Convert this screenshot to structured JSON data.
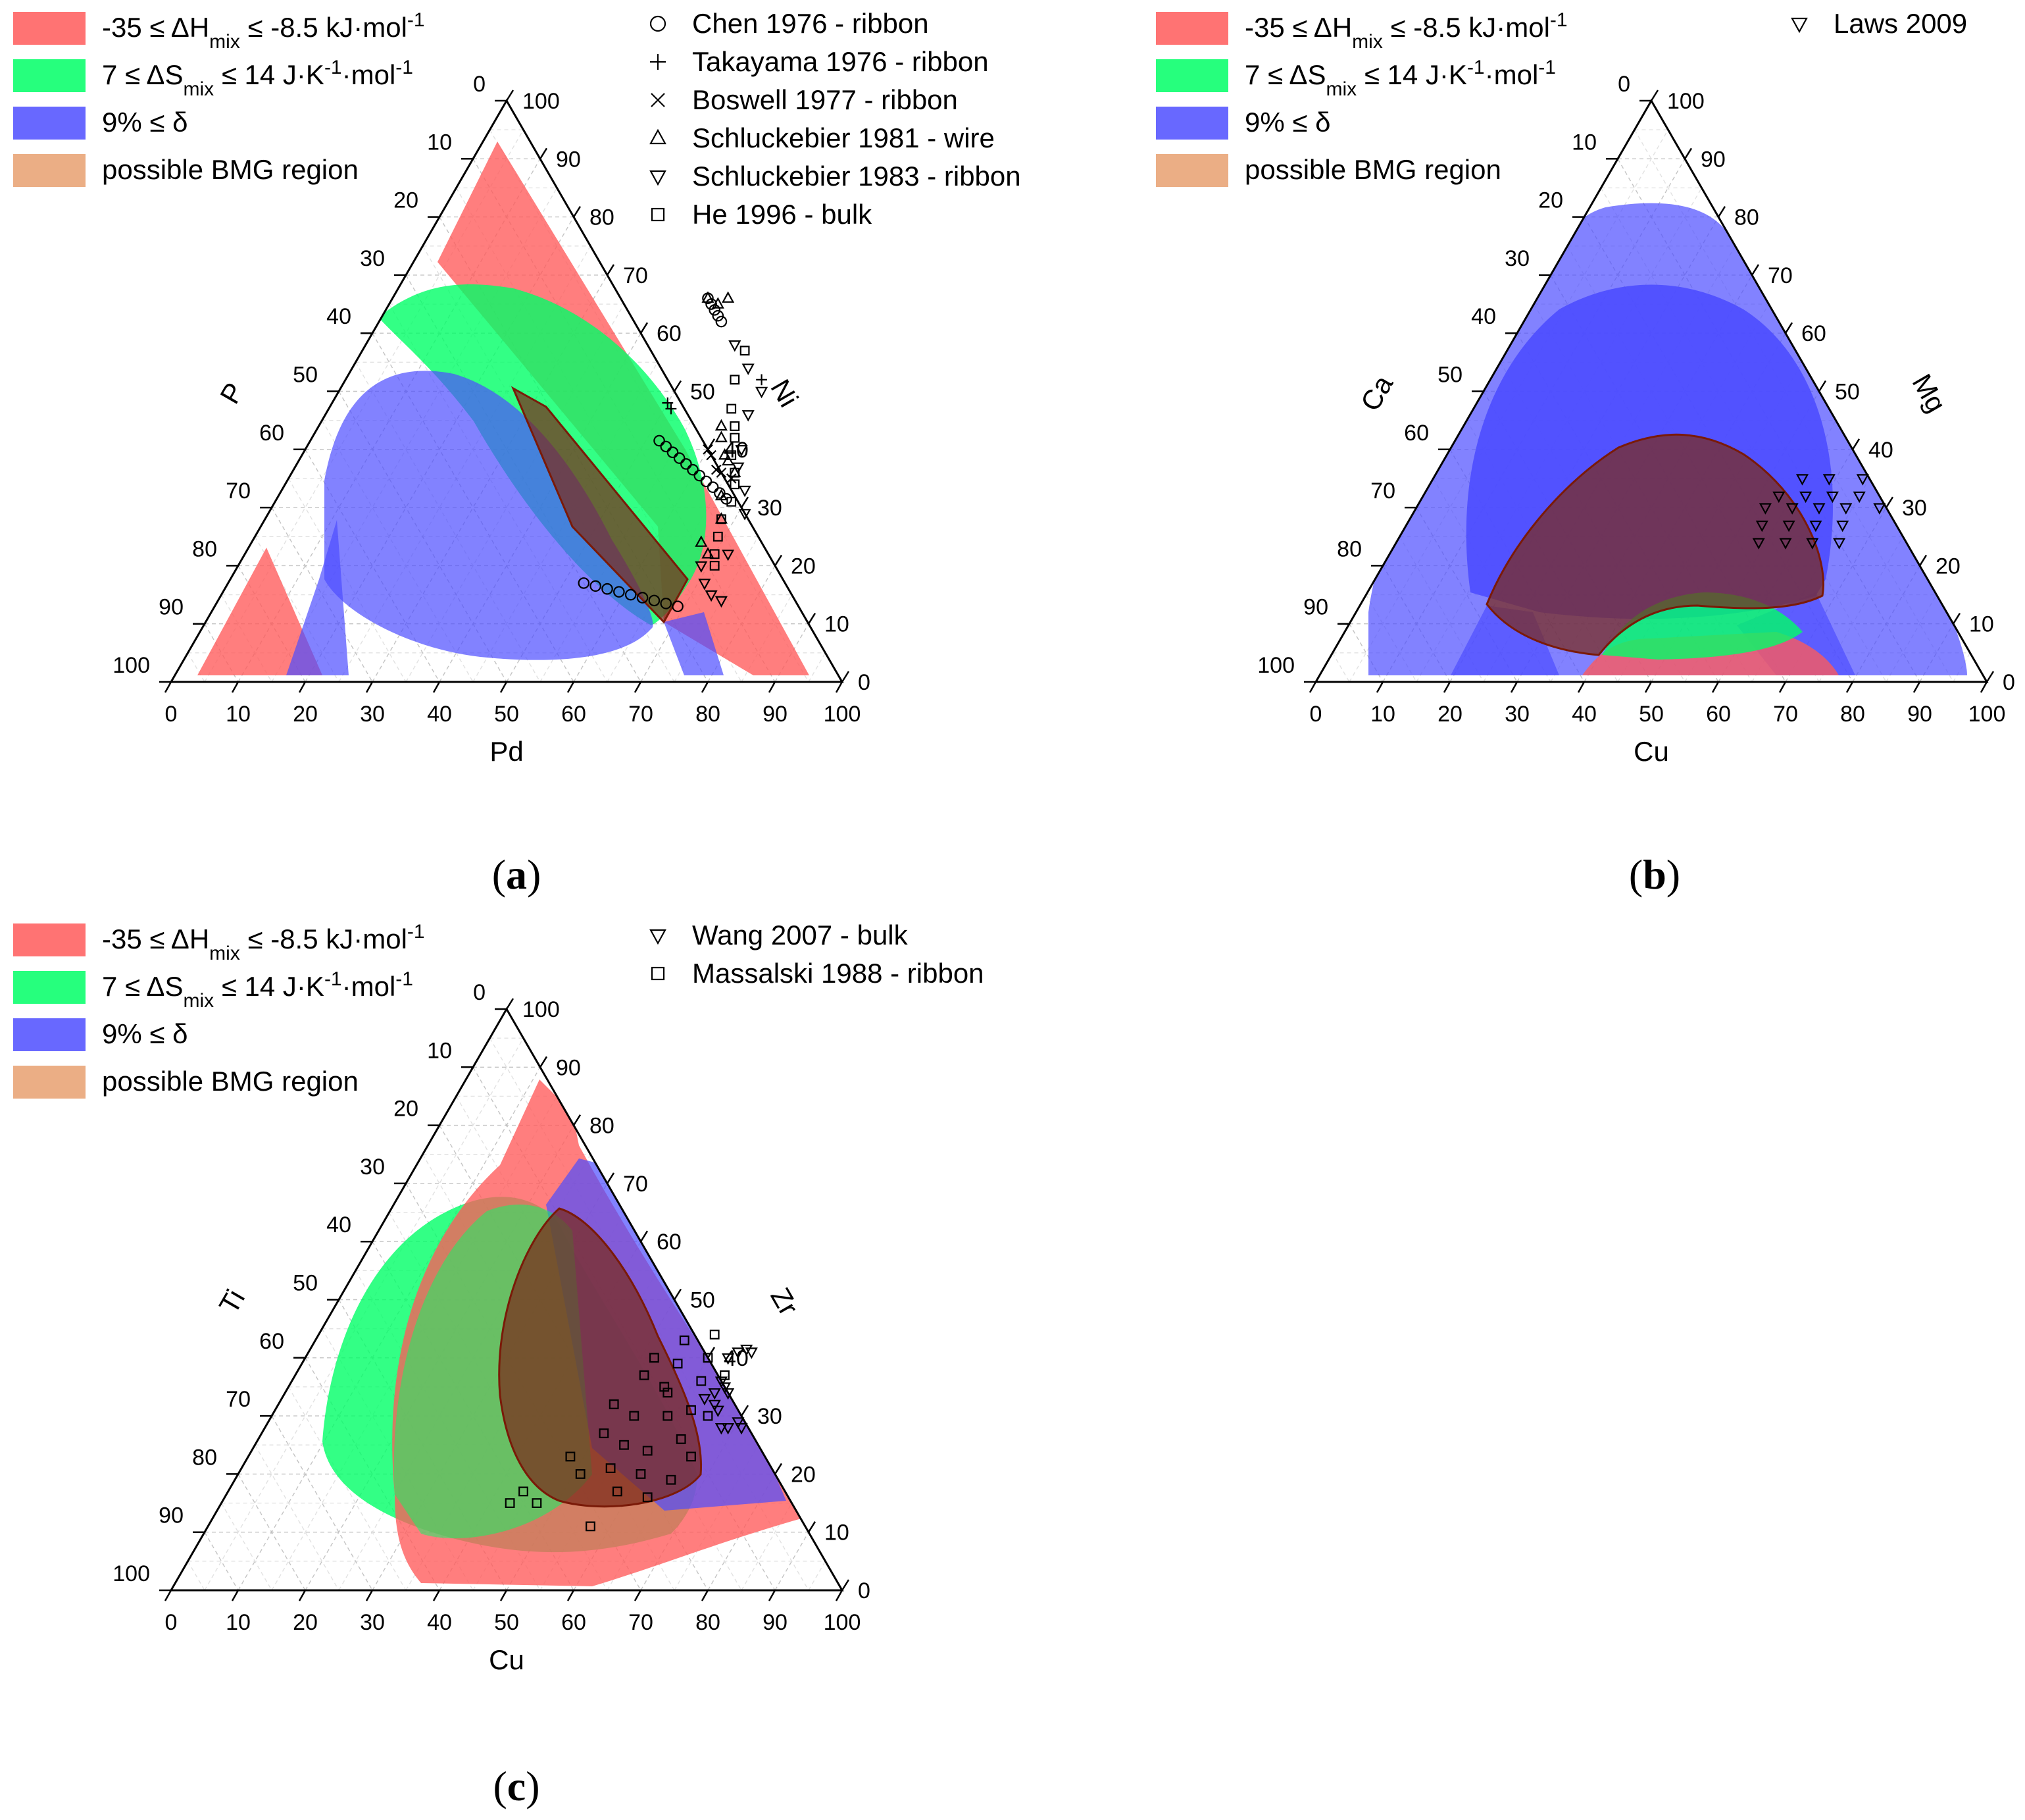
{
  "figure": {
    "colors": {
      "enthalpy": "#ff5a5a",
      "entropy": "#00ff66",
      "delta": "#4d4dff",
      "bmg": "#e8a070",
      "bmg_overlay": "#7a2a1a",
      "bmg_border": "#7a1a08",
      "axis": "#000000",
      "grid": "#c8c8c8"
    }
  },
  "chart_data": [
    {
      "type": "ternary",
      "panel": "(a)",
      "caption_letter": "a",
      "axes": {
        "bottom": {
          "label": "Pd",
          "ticks": [
            "0",
            "10",
            "20",
            "30",
            "40",
            "50",
            "60",
            "70",
            "80",
            "90",
            "100"
          ]
        },
        "left": {
          "label": "P",
          "ticks": [
            "0",
            "10",
            "20",
            "30",
            "40",
            "50",
            "60",
            "70",
            "80",
            "90",
            "100"
          ]
        },
        "right": {
          "label": "Ni",
          "ticks": [
            "0",
            "10",
            "20",
            "30",
            "40",
            "50",
            "60",
            "70",
            "80",
            "90",
            "100"
          ]
        }
      },
      "legend": [
        {
          "key": "enthalpy",
          "pre": "-35 ≤ ΔH",
          "sub": "mix",
          "post": " ≤ -8.5 kJ·mol",
          "sup": "-1",
          "post2": ""
        },
        {
          "key": "entropy",
          "pre": "7 ≤ ΔS",
          "sub": "mix",
          "post": " ≤ 14 J·K",
          "sup": "-1",
          "post2": "·mol",
          "sup2": "-1"
        },
        {
          "key": "delta",
          "pre": "9% ≤   δ"
        },
        {
          "key": "bmg",
          "pre": "possible BMG region"
        }
      ],
      "series": [
        {
          "name": "Chen 1976 - ribbon",
          "marker": "circle",
          "points": [
            [
              52,
              41.5
            ],
            [
              53.5,
              40.5
            ],
            [
              55,
              39.5
            ],
            [
              56.5,
              38.5
            ],
            [
              58,
              37.5
            ],
            [
              59.5,
              36.5
            ],
            [
              61,
              35.5
            ],
            [
              62.5,
              34.5
            ],
            [
              64,
              33.5
            ],
            [
              65.5,
              32.5
            ],
            [
              67,
              31.5
            ],
            [
              53,
              17
            ],
            [
              55,
              16.5
            ],
            [
              57,
              16
            ],
            [
              59,
              15.5
            ],
            [
              61,
              15
            ],
            [
              63,
              14.5
            ],
            [
              65,
              14
            ],
            [
              67,
              13.5
            ],
            [
              69,
              13
            ],
            [
              47,
              66
            ],
            [
              48,
              65
            ],
            [
              49,
              64
            ],
            [
              50,
              63
            ],
            [
              51,
              62
            ]
          ]
        },
        {
          "name": "Takayama 1976 - ribbon",
          "marker": "plus",
          "points": [
            [
              50,
              48
            ],
            [
              51,
              47
            ],
            [
              62,
              52
            ]
          ]
        },
        {
          "name": "Boswell 1977 - ribbon",
          "marker": "x",
          "points": [
            [
              60,
              40
            ],
            [
              61,
              39
            ],
            [
              63,
              36.5
            ],
            [
              64,
              36
            ],
            [
              66,
              35
            ]
          ]
        },
        {
          "name": "Schluckebier 1981 - wire",
          "marker": "triangle-up",
          "points": [
            [
              60,
              44
            ],
            [
              61,
              42
            ],
            [
              63,
              39
            ],
            [
              64,
              38
            ],
            [
              66,
              36
            ],
            [
              66,
              32
            ],
            [
              68,
              28
            ],
            [
              67,
              24
            ],
            [
              69,
              22
            ],
            [
              47,
              66
            ],
            [
              49,
              65
            ],
            [
              50,
              66
            ]
          ]
        },
        {
          "name": "Schluckebier 1983 - ribbon",
          "marker": "triangle-down",
          "points": [
            [
              55,
              58
            ],
            [
              59,
              54
            ],
            [
              63,
              50
            ],
            [
              63,
              46
            ],
            [
              65,
              40
            ],
            [
              66,
              37
            ],
            [
              69,
              33
            ],
            [
              71,
              29
            ],
            [
              72,
              22
            ],
            [
              69,
              20
            ],
            [
              71,
              17
            ],
            [
              73,
              15
            ],
            [
              75,
              14
            ]
          ]
        },
        {
          "name": "He 1996 - bulk",
          "marker": "square",
          "points": [
            [
              57,
              57
            ],
            [
              58,
              52
            ],
            [
              60,
              47
            ],
            [
              62,
              44
            ],
            [
              63,
              42
            ],
            [
              64,
              39
            ],
            [
              66,
              36
            ],
            [
              67,
              34
            ],
            [
              68,
              31
            ],
            [
              68,
              28
            ],
            [
              69,
              25
            ],
            [
              70,
              22
            ],
            [
              71,
              20
            ]
          ]
        }
      ]
    },
    {
      "type": "ternary",
      "panel": "(b)",
      "caption_letter": "b",
      "axes": {
        "bottom": {
          "label": "Cu",
          "ticks": [
            "0",
            "10",
            "20",
            "30",
            "40",
            "50",
            "60",
            "70",
            "80",
            "90",
            "100"
          ]
        },
        "left": {
          "label": "Ca",
          "ticks": [
            "0",
            "10",
            "20",
            "30",
            "40",
            "50",
            "60",
            "70",
            "80",
            "90",
            "100"
          ]
        },
        "right": {
          "label": "Mg",
          "ticks": [
            "0",
            "10",
            "20",
            "30",
            "40",
            "50",
            "60",
            "70",
            "80",
            "90",
            "100"
          ]
        }
      },
      "legend": [
        {
          "key": "enthalpy",
          "pre": "-35 ≤ ΔH",
          "sub": "mix",
          "post": " ≤ -8.5 kJ·mol",
          "sup": "-1",
          "post2": ""
        },
        {
          "key": "entropy",
          "pre": "7 ≤ ΔS",
          "sub": "mix",
          "post": " ≤ 14 J·K",
          "sup": "-1",
          "post2": "·mol",
          "sup2": "-1"
        },
        {
          "key": "delta",
          "pre": "9% ≤   δ"
        },
        {
          "key": "bmg",
          "pre": "possible BMG region"
        }
      ],
      "series": [
        {
          "name": "Laws 2009",
          "marker": "triangle-down",
          "points": [
            [
              55,
              35
            ],
            [
              59,
              35
            ],
            [
              64,
              35
            ],
            [
              53,
              32
            ],
            [
              57,
              32
            ],
            [
              61,
              32
            ],
            [
              65,
              32
            ],
            [
              52,
              30
            ],
            [
              56,
              30
            ],
            [
              60,
              30
            ],
            [
              64,
              30
            ],
            [
              69,
              30
            ],
            [
              53,
              27
            ],
            [
              57,
              27
            ],
            [
              61,
              27
            ],
            [
              65,
              27
            ],
            [
              54,
              24
            ],
            [
              58,
              24
            ],
            [
              62,
              24
            ],
            [
              66,
              24
            ]
          ]
        }
      ]
    },
    {
      "type": "ternary",
      "panel": "(c)",
      "caption_letter": "c",
      "axes": {
        "bottom": {
          "label": "Cu",
          "ticks": [
            "0",
            "10",
            "20",
            "30",
            "40",
            "50",
            "60",
            "70",
            "80",
            "90",
            "100"
          ]
        },
        "left": {
          "label": "Ti",
          "ticks": [
            "0",
            "10",
            "20",
            "30",
            "40",
            "50",
            "60",
            "70",
            "80",
            "90",
            "100"
          ]
        },
        "right": {
          "label": "Zr",
          "ticks": [
            "0",
            "10",
            "20",
            "30",
            "40",
            "50",
            "60",
            "70",
            "80",
            "90",
            "100"
          ]
        }
      },
      "legend": [
        {
          "key": "enthalpy",
          "pre": "-35 ≤ ΔH",
          "sub": "mix",
          "post": " ≤ -8.5 kJ·mol",
          "sup": "-1",
          "post2": ""
        },
        {
          "key": "entropy",
          "pre": " 7 ≤ ΔS",
          "sub": "mix",
          "post": " ≤ 14 J·K",
          "sup": "-1",
          "post2": "·mol",
          "sup2": "-1"
        },
        {
          "key": "delta",
          "pre": " 9% ≤   δ"
        },
        {
          "key": "bmg",
          "pre": "possible BMG region"
        }
      ],
      "series": [
        {
          "name": "Wang 2007 - bulk",
          "marker": "triangle-down",
          "points": [
            [
              63,
              40
            ],
            [
              64,
              41
            ],
            [
              65,
              41.5
            ],
            [
              66,
              41
            ],
            [
              64,
              36
            ],
            [
              65,
              35
            ],
            [
              66,
              34
            ],
            [
              65,
              32
            ],
            [
              66,
              31
            ],
            [
              68,
              28
            ],
            [
              69,
              28
            ],
            [
              70,
              29
            ],
            [
              71,
              28
            ],
            [
              64,
              34
            ],
            [
              63,
              33
            ]
          ]
        },
        {
          "name": "Massalski 1988 - ribbon",
          "marker": "square",
          "points": [
            [
              55,
              43
            ],
            [
              59,
              44
            ],
            [
              52,
              40
            ],
            [
              56,
              39
            ],
            [
              60,
              40
            ],
            [
              52,
              37
            ],
            [
              56,
              35
            ],
            [
              57,
              34
            ],
            [
              61,
              36
            ],
            [
              64,
              37
            ],
            [
              50,
              32
            ],
            [
              54,
              30
            ],
            [
              59,
              30
            ],
            [
              62,
              31
            ],
            [
              65,
              30
            ],
            [
              51,
              27
            ],
            [
              55,
              25
            ],
            [
              59,
              24
            ],
            [
              63,
              26
            ],
            [
              66,
              23
            ],
            [
              48,
              23
            ],
            [
              51,
              20
            ],
            [
              55,
              21
            ],
            [
              60,
              20
            ],
            [
              65,
              19
            ],
            [
              44,
              17
            ],
            [
              47,
              15
            ],
            [
              58,
              17
            ],
            [
              63,
              16
            ],
            [
              57,
              11
            ],
            [
              43,
              15
            ]
          ]
        }
      ]
    }
  ]
}
